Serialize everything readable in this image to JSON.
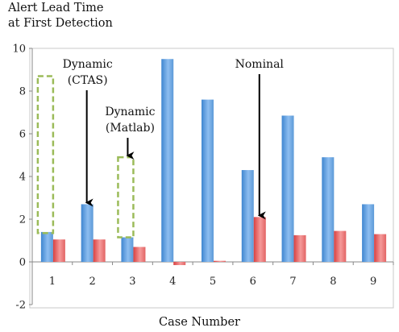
{
  "chart_data": {
    "type": "bar",
    "ylabel_lines": [
      "Alert Lead Time",
      "at First Detection"
    ],
    "xlabel": "Case Number",
    "categories": [
      "1",
      "2",
      "3",
      "4",
      "5",
      "6",
      "7",
      "8",
      "9"
    ],
    "series": [
      {
        "color": "#5b9bd5",
        "values": [
          1.4,
          2.7,
          1.15,
          9.5,
          7.6,
          4.3,
          6.85,
          4.9,
          2.7
        ]
      },
      {
        "color": "#e85a5a",
        "values": [
          1.05,
          1.05,
          0.7,
          -0.15,
          0.05,
          2.1,
          1.25,
          1.45,
          1.3
        ]
      }
    ],
    "ylim": [
      -2,
      10
    ],
    "yticks": [
      "-2",
      "0",
      "2",
      "4",
      "6",
      "8",
      "10"
    ],
    "grid": false,
    "annotations": [
      {
        "lines": [
          "Dynamic",
          "(CTAS)"
        ],
        "case": "2",
        "value": 2.7
      },
      {
        "lines": [
          "Dynamic",
          "(Matlab)"
        ],
        "case": "3",
        "value": 4.9
      },
      {
        "lines": [
          "Nominal"
        ],
        "case": "6",
        "value": 2.1
      }
    ],
    "dashed_boxes": [
      {
        "case": "1",
        "y_low": 1.35,
        "y_high": 8.7,
        "color": "#9bbb59"
      },
      {
        "case": "3",
        "y_low": 1.15,
        "y_high": 4.9,
        "color": "#9bbb59"
      }
    ]
  }
}
